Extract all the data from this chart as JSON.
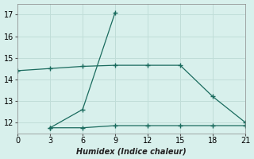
{
  "line1_x": [
    0,
    3,
    6,
    9,
    12,
    15,
    18,
    21
  ],
  "line1_y": [
    14.4,
    14.5,
    14.6,
    14.65,
    14.65,
    14.65,
    13.2,
    12.0
  ],
  "line2_x": [
    3,
    6,
    9
  ],
  "line2_y": [
    11.75,
    12.6,
    17.1
  ],
  "line3_x": [
    3,
    6,
    9,
    12,
    15,
    18,
    21
  ],
  "line3_y": [
    11.75,
    11.75,
    11.85,
    11.85,
    11.85,
    11.85,
    11.85
  ],
  "line_color": "#1a6b5e",
  "bg_color": "#d8f0ec",
  "grid_major_color": "#c0ddd8",
  "grid_minor_color": "#c8e8e3",
  "xlabel": "Humidex (Indice chaleur)",
  "xlim": [
    0,
    21
  ],
  "ylim": [
    11.5,
    17.5
  ],
  "xticks": [
    0,
    3,
    6,
    9,
    12,
    15,
    18,
    21
  ],
  "yticks": [
    12,
    13,
    14,
    15,
    16,
    17
  ],
  "marker": "+"
}
